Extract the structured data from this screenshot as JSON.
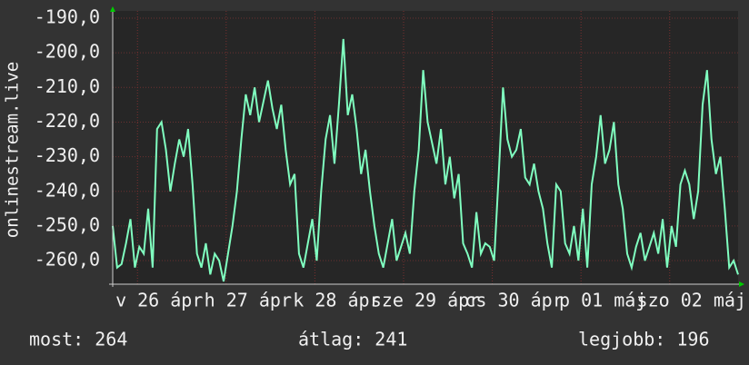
{
  "chart_data": {
    "type": "line",
    "y_label": "onlinestream.live",
    "color": "#80ffc0",
    "xlim": [
      0,
      141
    ],
    "xticks": [
      {
        "value": 10.5,
        "label": "v 26 ápr"
      },
      {
        "value": 30.5,
        "label": "h 27 ápr"
      },
      {
        "value": 50.5,
        "label": "k 28 ápr"
      },
      {
        "value": 70.5,
        "label": "sze 29 ápr"
      },
      {
        "value": 90.5,
        "label": "cs 30 ápr"
      },
      {
        "value": 110.5,
        "label": "p 01 máj"
      },
      {
        "value": 130.5,
        "label": "szo 02 máj"
      }
    ],
    "ylim": [
      -266.8,
      -187.9
    ],
    "yticks": [
      {
        "value": -190,
        "label": "-190,0"
      },
      {
        "value": -200,
        "label": "-200,0"
      },
      {
        "value": -210,
        "label": "-210,0"
      },
      {
        "value": -220,
        "label": "-220,0"
      },
      {
        "value": -230,
        "label": "-230,0"
      },
      {
        "value": -240,
        "label": "-240,0"
      },
      {
        "value": -250,
        "label": "-250,0"
      },
      {
        "value": -260,
        "label": "-260,0"
      }
    ],
    "grid": true,
    "values": [
      -250,
      -262,
      -261,
      -255,
      -248,
      -262,
      -256,
      -258,
      -245,
      -262,
      -222,
      -220,
      -228,
      -240,
      -232,
      -225,
      -230,
      -222,
      -238,
      -258,
      -262,
      -255,
      -264,
      -258,
      -260,
      -266,
      -258,
      -250,
      -240,
      -225,
      -212,
      -218,
      -210,
      -220,
      -214,
      -208,
      -216,
      -222,
      -215,
      -228,
      -238,
      -235,
      -258,
      -262,
      -255,
      -248,
      -260,
      -240,
      -225,
      -218,
      -232,
      -215,
      -196,
      -218,
      -212,
      -222,
      -235,
      -228,
      -240,
      -250,
      -258,
      -262,
      -255,
      -248,
      -260,
      -256,
      -252,
      -258,
      -240,
      -228,
      -205,
      -220,
      -226,
      -232,
      -222,
      -238,
      -230,
      -242,
      -235,
      -255,
      -258,
      -262,
      -246,
      -258,
      -255,
      -256,
      -260,
      -236,
      -210,
      -225,
      -230,
      -228,
      -222,
      -236,
      -238,
      -232,
      -240,
      -245,
      -255,
      -262,
      -238,
      -240,
      -255,
      -258,
      -250,
      -260,
      -245,
      -262,
      -238,
      -230,
      -218,
      -232,
      -228,
      -220,
      -238,
      -245,
      -258,
      -262,
      -256,
      -252,
      -260,
      -256,
      -252,
      -258,
      -248,
      -262,
      -250,
      -256,
      -238,
      -234,
      -238,
      -248,
      -240,
      -215,
      -205,
      -225,
      -235,
      -230,
      -245,
      -262,
      -260,
      -264
    ],
    "stats": [
      "most: 264",
      "átlag: 241",
      "legjobb: 196"
    ]
  }
}
